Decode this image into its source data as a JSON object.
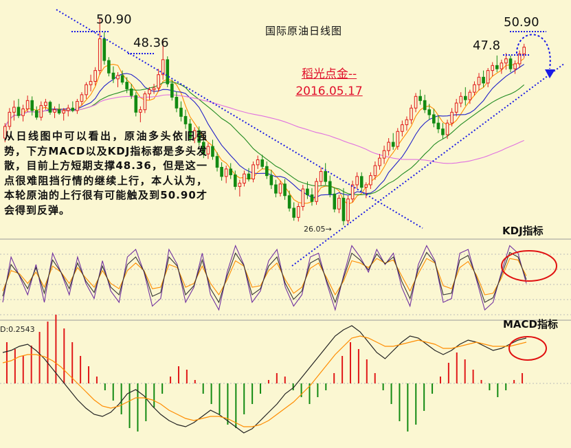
{
  "chart_data": [
    {
      "type": "candlestick",
      "title": "国际原油日线图",
      "panel": "main",
      "legend": "",
      "annotations": {
        "brand": "稻光点金--",
        "date": "2016.05.17",
        "commentary": "从日线图中可以看出，原油多头依旧强势，下方MACD以及KDJ指标都是多头发散，目前上方短期支撑48.36，但是这一点很难阻挡行情的继续上行，本人认为，本轮原油的上行很有可能触及到50.90才会得到反弹。",
        "level_left_high": "50.90",
        "level_left_second": "48.36",
        "level_low": "26.05",
        "level_low_arrow": "26.05→",
        "level_right_current": "47.8",
        "level_right_target": "50.90"
      },
      "candles": [
        [
          36.5,
          38.3,
          36.0,
          37.9
        ],
        [
          37.9,
          40.1,
          37.5,
          39.6
        ],
        [
          39.6,
          41.0,
          38.6,
          40.2
        ],
        [
          40.2,
          41.2,
          38.9,
          39.2
        ],
        [
          39.2,
          40.5,
          38.5,
          40.0
        ],
        [
          40.0,
          41.6,
          39.6,
          41.0
        ],
        [
          41.0,
          41.5,
          39.2,
          39.8
        ],
        [
          39.8,
          40.3,
          38.7,
          39.0
        ],
        [
          39.0,
          40.9,
          38.6,
          40.4
        ],
        [
          40.4,
          41.2,
          39.9,
          40.8
        ],
        [
          40.8,
          41.0,
          39.3,
          39.6
        ],
        [
          39.6,
          40.3,
          38.9,
          39.9
        ],
        [
          39.9,
          40.6,
          39.3,
          39.5
        ],
        [
          39.5,
          40.1,
          38.6,
          39.8
        ],
        [
          39.8,
          40.5,
          39.1,
          40.1
        ],
        [
          40.1,
          40.9,
          39.6,
          39.8
        ],
        [
          39.8,
          41.2,
          39.4,
          40.9
        ],
        [
          40.9,
          42.0,
          40.4,
          41.7
        ],
        [
          41.7,
          43.2,
          41.2,
          42.9
        ],
        [
          42.9,
          44.1,
          42.1,
          43.3
        ],
        [
          43.3,
          45.0,
          42.8,
          44.6
        ],
        [
          44.6,
          50.9,
          44.1,
          48.4
        ],
        [
          48.4,
          49.2,
          45.3,
          45.8
        ],
        [
          45.8,
          46.2,
          43.9,
          44.3
        ],
        [
          44.3,
          45.1,
          43.1,
          43.6
        ],
        [
          43.6,
          44.4,
          42.6,
          44.0
        ],
        [
          44.0,
          44.6,
          42.9,
          43.2
        ],
        [
          43.2,
          43.8,
          41.9,
          42.4
        ],
        [
          42.4,
          43.0,
          41.2,
          41.6
        ],
        [
          41.6,
          42.0,
          39.1,
          39.6
        ],
        [
          39.6,
          40.3,
          38.4,
          39.9
        ],
        [
          39.9,
          42.1,
          39.5,
          41.8
        ],
        [
          41.8,
          42.6,
          41.1,
          42.3
        ],
        [
          42.3,
          43.0,
          41.8,
          42.5
        ],
        [
          42.5,
          44.8,
          42.1,
          44.1
        ],
        [
          44.1,
          48.36,
          43.5,
          45.9
        ],
        [
          45.9,
          46.3,
          42.6,
          43.0
        ],
        [
          43.0,
          43.5,
          41.0,
          41.4
        ],
        [
          41.4,
          42.1,
          39.6,
          40.1
        ],
        [
          40.1,
          40.9,
          38.5,
          39.1
        ],
        [
          39.1,
          39.9,
          37.6,
          38.2
        ],
        [
          38.2,
          38.8,
          36.1,
          36.5
        ],
        [
          36.5,
          37.8,
          35.9,
          37.4
        ],
        [
          37.4,
          37.9,
          35.6,
          36.0
        ],
        [
          36.0,
          36.5,
          34.1,
          34.6
        ],
        [
          34.6,
          35.9,
          34.0,
          35.5
        ],
        [
          35.5,
          36.3,
          33.9,
          34.3
        ],
        [
          34.3,
          34.8,
          32.5,
          33.0
        ],
        [
          33.0,
          33.6,
          31.4,
          31.9
        ],
        [
          31.9,
          33.2,
          31.1,
          32.8
        ],
        [
          32.8,
          33.5,
          31.6,
          32.1
        ],
        [
          32.1,
          32.6,
          30.3,
          30.7
        ],
        [
          30.7,
          31.5,
          29.5,
          31.1
        ],
        [
          31.1,
          32.6,
          30.7,
          32.2
        ],
        [
          32.2,
          32.9,
          31.3,
          31.6
        ],
        [
          31.6,
          33.7,
          31.2,
          33.3
        ],
        [
          33.3,
          34.4,
          32.8,
          33.9
        ],
        [
          33.9,
          34.5,
          32.8,
          33.1
        ],
        [
          33.1,
          33.7,
          31.6,
          32.0
        ],
        [
          32.0,
          32.7,
          30.4,
          30.9
        ],
        [
          30.9,
          31.5,
          29.4,
          29.9
        ],
        [
          29.9,
          31.4,
          29.5,
          31.0
        ],
        [
          31.0,
          31.6,
          29.1,
          29.6
        ],
        [
          29.6,
          30.2,
          27.7,
          28.1
        ],
        [
          28.1,
          28.8,
          26.6,
          27.0
        ],
        [
          27.0,
          28.7,
          26.5,
          28.3
        ],
        [
          28.3,
          30.9,
          27.8,
          30.4
        ],
        [
          30.4,
          31.3,
          29.2,
          29.7
        ],
        [
          29.7,
          30.5,
          28.4,
          28.9
        ],
        [
          28.9,
          31.7,
          28.5,
          31.3
        ],
        [
          31.3,
          33.0,
          30.8,
          32.5
        ],
        [
          32.5,
          33.5,
          30.9,
          31.3
        ],
        [
          31.3,
          32.0,
          29.4,
          29.8
        ],
        [
          29.8,
          30.5,
          27.6,
          28.0
        ],
        [
          28.0,
          29.7,
          27.5,
          29.3
        ],
        [
          29.3,
          30.5,
          26.05,
          26.6
        ],
        [
          26.6,
          29.6,
          26.2,
          29.2
        ],
        [
          29.2,
          31.4,
          28.8,
          30.9
        ],
        [
          30.9,
          32.4,
          30.4,
          31.9
        ],
        [
          31.9,
          32.4,
          30.1,
          30.6
        ],
        [
          30.6,
          31.2,
          29.3,
          30.9
        ],
        [
          30.9,
          32.4,
          30.4,
          32.0
        ],
        [
          32.0,
          33.7,
          31.5,
          33.2
        ],
        [
          33.2,
          34.6,
          32.7,
          34.1
        ],
        [
          34.1,
          35.6,
          33.4,
          35.0
        ],
        [
          35.0,
          36.5,
          34.4,
          36.0
        ],
        [
          36.0,
          37.1,
          35.1,
          35.5
        ],
        [
          35.5,
          37.7,
          35.1,
          37.3
        ],
        [
          37.3,
          38.6,
          36.7,
          38.1
        ],
        [
          38.1,
          39.1,
          37.4,
          38.7
        ],
        [
          38.7,
          40.5,
          38.2,
          40.1
        ],
        [
          40.1,
          41.9,
          39.6,
          41.5
        ],
        [
          41.5,
          42.3,
          40.5,
          41.0
        ],
        [
          41.0,
          41.7,
          39.5,
          39.9
        ],
        [
          39.9,
          40.6,
          38.7,
          39.3
        ],
        [
          39.3,
          40.0,
          37.8,
          38.3
        ],
        [
          38.3,
          39.2,
          37.1,
          37.6
        ],
        [
          37.6,
          38.3,
          36.4,
          36.9
        ],
        [
          36.9,
          38.7,
          36.4,
          38.3
        ],
        [
          38.3,
          40.1,
          37.9,
          39.6
        ],
        [
          39.6,
          41.2,
          39.1,
          40.7
        ],
        [
          40.7,
          42.0,
          40.2,
          41.5
        ],
        [
          41.5,
          42.6,
          40.4,
          41.1
        ],
        [
          41.1,
          42.3,
          40.6,
          42.0
        ],
        [
          42.0,
          43.3,
          41.6,
          42.9
        ],
        [
          42.9,
          44.3,
          42.2,
          43.8
        ],
        [
          43.8,
          44.6,
          42.6,
          43.1
        ],
        [
          43.1,
          44.9,
          42.6,
          44.6
        ],
        [
          44.6,
          45.6,
          43.9,
          45.2
        ],
        [
          45.2,
          46.4,
          44.4,
          44.8
        ],
        [
          44.8,
          45.9,
          44.2,
          45.5
        ],
        [
          45.5,
          46.7,
          44.7,
          46.0
        ],
        [
          46.0,
          46.4,
          44.4,
          44.8
        ],
        [
          44.8,
          45.8,
          44.2,
          45.4
        ],
        [
          45.4,
          47.0,
          44.9,
          46.6
        ],
        [
          46.6,
          47.8,
          46.1,
          47.4
        ]
      ],
      "ma_series": [
        {
          "color": "#ff8c00",
          "period": 5
        },
        {
          "color": "#2020c8",
          "period": 10
        },
        {
          "color": "#228b22",
          "period": 20
        },
        {
          "color": "#e070e0",
          "period": 60
        }
      ],
      "colors": {
        "up": "#e01818",
        "down": "#128a12",
        "trendline": "#1a1ae6",
        "marker": "#1a1ae6"
      }
    },
    {
      "type": "line",
      "title": "KDJ指标",
      "panel": "kdj",
      "ylim": [
        0,
        100
      ],
      "series": [
        {
          "color": "#7030a0",
          "values": [
            20,
            80,
            55,
            30,
            70,
            20,
            85,
            60,
            30,
            80,
            45,
            25,
            75,
            35,
            20,
            80,
            90,
            60,
            15,
            25,
            90,
            70,
            20,
            40,
            85,
            30,
            10,
            60,
            95,
            70,
            20,
            35,
            75,
            90,
            40,
            15,
            30,
            80,
            85,
            45,
            10,
            55,
            95,
            80,
            60,
            90,
            70,
            85,
            40,
            15,
            70,
            95,
            75,
            20,
            25,
            85,
            90,
            50,
            10,
            20,
            60,
            95,
            85,
            45
          ]
        },
        {
          "color": "#ff8c00",
          "values": [
            35,
            62,
            58,
            45,
            60,
            40,
            68,
            60,
            45,
            66,
            52,
            40,
            62,
            45,
            38,
            62,
            72,
            62,
            38,
            40,
            70,
            66,
            40,
            45,
            68,
            45,
            30,
            50,
            75,
            68,
            40,
            42,
            62,
            72,
            50,
            32,
            40,
            65,
            72,
            52,
            30,
            48,
            75,
            72,
            66,
            78,
            72,
            76,
            55,
            35,
            58,
            78,
            72,
            42,
            38,
            66,
            74,
            56,
            30,
            32,
            52,
            78,
            76,
            55
          ]
        },
        {
          "color": "#333333",
          "values": [
            28,
            70,
            56,
            38,
            66,
            32,
            76,
            60,
            38,
            72,
            48,
            33,
            68,
            40,
            30,
            70,
            80,
            61,
            28,
            33,
            80,
            68,
            30,
            42,
            76,
            38,
            20,
            55,
            85,
            69,
            30,
            38,
            68,
            80,
            45,
            24,
            35,
            72,
            78,
            48,
            20,
            52,
            85,
            76,
            63,
            84,
            71,
            80,
            48,
            25,
            64,
            86,
            73,
            30,
            32,
            76,
            82,
            53,
            20,
            26,
            56,
            86,
            80,
            50
          ]
        }
      ]
    },
    {
      "type": "bar",
      "title": "MACD指标",
      "panel": "macd",
      "value_label": "D:0.2543",
      "histogram": [
        1.2,
        1.0,
        0.8,
        1.1,
        1.5,
        1.8,
        2.0,
        1.6,
        1.2,
        0.8,
        0.5,
        0.2,
        -0.2,
        -0.5,
        -0.9,
        -1.3,
        -1.4,
        -1.1,
        -0.7,
        -0.3,
        0.2,
        0.5,
        0.4,
        0.1,
        -0.3,
        -0.6,
        -0.9,
        -1.2,
        -1.3,
        -0.9,
        -0.6,
        -0.3,
        0.1,
        0.3,
        0.2,
        -0.2,
        -0.4,
        -0.6,
        -0.4,
        -0.2,
        0.3,
        0.8,
        1.2,
        1.0,
        0.7,
        0.3,
        -0.2,
        -0.6,
        -1.1,
        -1.4,
        -1.2,
        -0.8,
        -0.3,
        0.2,
        0.6,
        0.9,
        0.7,
        0.4,
        0.1,
        -0.2,
        -0.4,
        -0.2,
        0.1,
        0.3
      ],
      "dif": [
        1.5,
        1.6,
        1.8,
        1.9,
        1.6,
        1.2,
        0.7,
        0.2,
        -0.3,
        -0.8,
        -1.2,
        -1.5,
        -1.6,
        -1.4,
        -1.0,
        -0.5,
        -0.3,
        -0.6,
        -1.1,
        -1.5,
        -1.8,
        -2.0,
        -2.1,
        -1.9,
        -1.6,
        -1.3,
        -1.5,
        -1.8,
        -2.1,
        -2.4,
        -2.2,
        -1.8,
        -1.4,
        -1.0,
        -0.5,
        -0.2,
        0.3,
        0.8,
        1.3,
        1.8,
        2.3,
        2.6,
        2.8,
        2.5,
        2.0,
        1.5,
        1.2,
        1.6,
        2.0,
        2.3,
        2.2,
        1.9,
        1.6,
        1.4,
        1.6,
        1.9,
        2.1,
        2.0,
        1.8,
        1.6,
        1.7,
        1.9,
        2.1,
        2.2
      ],
      "dea": [
        1.0,
        1.1,
        1.3,
        1.4,
        1.4,
        1.3,
        1.1,
        0.8,
        0.4,
        0.0,
        -0.4,
        -0.8,
        -1.1,
        -1.2,
        -1.1,
        -0.9,
        -0.7,
        -0.7,
        -0.8,
        -1.0,
        -1.3,
        -1.5,
        -1.7,
        -1.8,
        -1.7,
        -1.6,
        -1.6,
        -1.7,
        -1.9,
        -2.1,
        -2.1,
        -2.0,
        -1.8,
        -1.5,
        -1.2,
        -0.9,
        -0.5,
        -0.1,
        0.4,
        0.9,
        1.4,
        1.8,
        2.2,
        2.3,
        2.2,
        2.0,
        1.8,
        1.8,
        1.9,
        2.0,
        2.1,
        2.0,
        1.9,
        1.7,
        1.7,
        1.8,
        1.9,
        2.0,
        1.9,
        1.8,
        1.8,
        1.8,
        1.9,
        2.0
      ],
      "colors": {
        "pos": "#e01818",
        "neg": "#128a12",
        "dif": "#222222",
        "dea": "#ff8c00"
      }
    }
  ]
}
